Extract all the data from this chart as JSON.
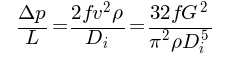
{
  "equation": "\\dfrac{\\Delta p}{L} = \\dfrac{2fv^2\\rho}{D_i} = \\dfrac{32fG^2}{\\pi^2\\rho D_i^5}",
  "fontsize": 15,
  "text_color": "#000000",
  "background_color": "#ffffff",
  "fig_width": 2.28,
  "fig_height": 0.59,
  "dpi": 100
}
